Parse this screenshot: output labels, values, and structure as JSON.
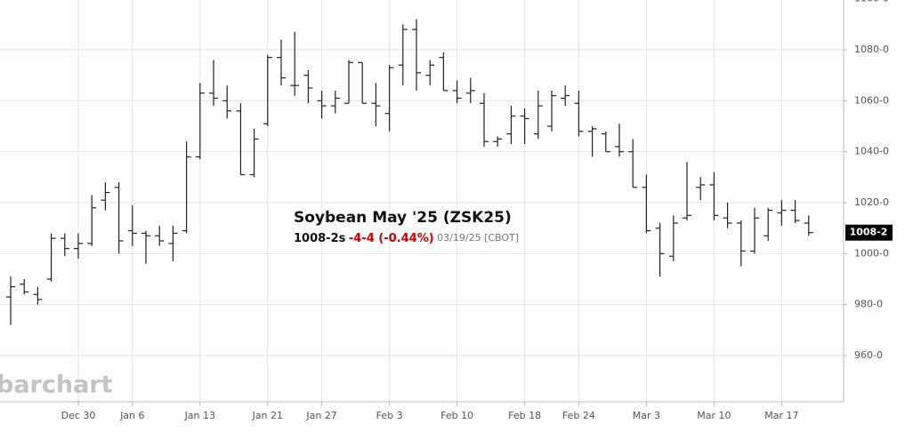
{
  "chart_data": {
    "type": "ohlc",
    "title": "Soybean May '25 (ZSK25)",
    "last_price": "1008-2s",
    "change": "-4-4 (-0.44%)",
    "date_info": "03/19/25 [CBOT]",
    "watermark": "barchart",
    "color": "#222222",
    "grid": true,
    "categories": [
      null,
      null,
      null,
      null,
      null,
      "Dec 30",
      null,
      null,
      null,
      "Jan 6",
      null,
      null,
      null,
      null,
      "Jan 13",
      null,
      null,
      null,
      null,
      "Jan 21",
      null,
      null,
      null,
      "Jan 27",
      null,
      null,
      null,
      null,
      "Feb 3",
      null,
      null,
      null,
      null,
      "Feb 10",
      null,
      null,
      null,
      null,
      "Feb 18",
      null,
      null,
      null,
      "Feb 24",
      null,
      null,
      null,
      null,
      "Mar 3",
      null,
      null,
      null,
      null,
      "Mar 10",
      null,
      null,
      null,
      null,
      "Mar 17",
      null,
      null
    ],
    "open": [
      983,
      988,
      984,
      990,
      1006,
      1002,
      1004,
      1021,
      1026,
      1009,
      1008,
      1007,
      1004,
      1009,
      1038,
      1063,
      1060,
      1056,
      1031,
      1051,
      1077,
      1066,
      1070,
      1060,
      1058,
      1059,
      1075,
      1059,
      1055,
      1074,
      1088,
      1070,
      1077,
      1064,
      1063,
      1059,
      1044,
      1047,
      1054,
      1047,
      1050,
      1061,
      1059,
      1048,
      1047,
      1042,
      1040,
      1026,
      1010,
      999,
      1014,
      1026,
      1027,
      1014,
      1012,
      1001,
      1007,
      1016,
      1017,
      1012
    ],
    "high": [
      991,
      990,
      987,
      1008,
      1008,
      1008,
      1023,
      1028,
      1028,
      1019,
      1009,
      1011,
      1011,
      1044,
      1067,
      1076,
      1066,
      1059,
      1049,
      1078,
      1084,
      1087,
      1072,
      1064,
      1064,
      1076,
      1075,
      1067,
      1074,
      1090,
      1092,
      1076,
      1079,
      1068,
      1069,
      1063,
      1046,
      1058,
      1057,
      1064,
      1064,
      1066,
      1064,
      1050,
      1048,
      1051,
      1045,
      1031,
      1012,
      1015,
      1036,
      1030,
      1032,
      1020,
      1013,
      1018,
      1018,
      1021,
      1021,
      1015
    ],
    "low": [
      972,
      984,
      980,
      989,
      999,
      998,
      1003,
      1017,
      1000,
      1003,
      996,
      1003,
      997,
      1008,
      1037,
      1058,
      1053,
      1031,
      1030,
      1050,
      1066,
      1062,
      1059,
      1053,
      1055,
      1059,
      1059,
      1050,
      1048,
      1066,
      1064,
      1066,
      1064,
      1059,
      1059,
      1042,
      1042,
      1043,
      1043,
      1045,
      1048,
      1058,
      1046,
      1038,
      1040,
      1038,
      1026,
      1008,
      991,
      997,
      1013,
      1021,
      1013,
      1010,
      995,
      1000,
      1005,
      1011,
      1012,
      1007
    ],
    "close": [
      987,
      985,
      982,
      1006,
      1002,
      1004,
      1018,
      1024,
      1005,
      1008,
      1007,
      1005,
      1008,
      1038,
      1063,
      1061,
      1056,
      1031,
      1045,
      1077,
      1069,
      1066,
      1065,
      1058,
      1061,
      1075,
      1059,
      1058,
      1073,
      1088,
      1071,
      1074,
      1064,
      1061,
      1064,
      1044,
      1045,
      1054,
      1053,
      1058,
      1062,
      1062,
      1048,
      1049,
      1040,
      1040,
      1026,
      1009,
      1000,
      1012,
      1015,
      1027,
      1015,
      1012,
      1001,
      1014,
      1017,
      1017,
      1013,
      1008.25
    ],
    "last_label": {
      "value": 1008.25,
      "label": "1008-2"
    },
    "ylim": [
      942,
      1100
    ],
    "yticks": [
      {
        "value": 960,
        "label": "960-0"
      },
      {
        "value": 980,
        "label": "980-0"
      },
      {
        "value": 1000,
        "label": "1000-0"
      },
      {
        "value": 1020,
        "label": "1020-0"
      },
      {
        "value": 1040,
        "label": "1040-0"
      },
      {
        "value": 1060,
        "label": "1060-0"
      },
      {
        "value": 1080,
        "label": "1080-0"
      },
      {
        "value": 1100,
        "label": "1100-0"
      }
    ]
  }
}
